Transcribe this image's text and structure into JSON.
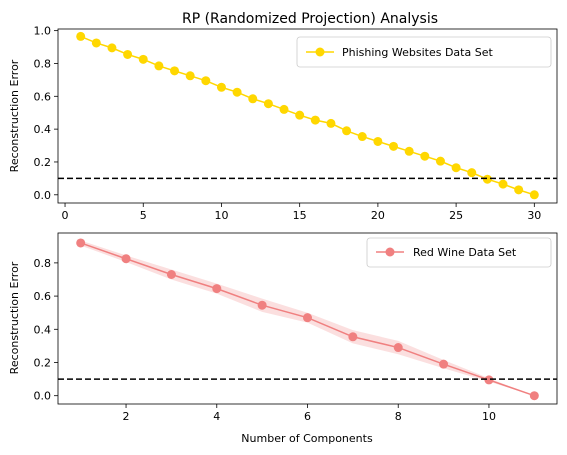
{
  "chart_data": [
    {
      "type": "line",
      "title": "RP (Randomized Projection) Analysis",
      "xlabel": "",
      "ylabel": "Reconstruction Error",
      "xlim": [
        -0.45,
        31.45
      ],
      "ylim": [
        -0.05,
        1.01
      ],
      "xticks": [
        0,
        5,
        10,
        15,
        20,
        25,
        30
      ],
      "yticks": [
        0.0,
        0.2,
        0.4,
        0.6,
        0.8,
        1.0
      ],
      "threshold": 0.1,
      "legend_position": "top-right",
      "series": [
        {
          "name": "Phishing Websites Data Set",
          "color": "#FFD700",
          "x": [
            1,
            2,
            3,
            4,
            5,
            6,
            7,
            8,
            9,
            10,
            11,
            12,
            13,
            14,
            15,
            16,
            17,
            18,
            19,
            20,
            21,
            22,
            23,
            24,
            25,
            26,
            27,
            28,
            29,
            30
          ],
          "y": [
            0.965,
            0.925,
            0.895,
            0.855,
            0.825,
            0.785,
            0.755,
            0.725,
            0.695,
            0.655,
            0.625,
            0.585,
            0.555,
            0.52,
            0.485,
            0.455,
            0.435,
            0.39,
            0.355,
            0.325,
            0.295,
            0.265,
            0.235,
            0.205,
            0.165,
            0.135,
            0.095,
            0.065,
            0.03,
            0.0
          ]
        }
      ]
    },
    {
      "type": "line",
      "title": "",
      "xlabel": "Number of Components",
      "ylabel": "Reconstruction Error",
      "xlim": [
        0.5,
        11.5
      ],
      "ylim": [
        -0.05,
        0.98
      ],
      "xticks": [
        2,
        4,
        6,
        8,
        10
      ],
      "yticks": [
        0.0,
        0.2,
        0.4,
        0.6,
        0.8
      ],
      "threshold": 0.1,
      "legend_position": "top-right",
      "series": [
        {
          "name": "Red Wine Data Set",
          "color": "#F08080",
          "x": [
            1,
            2,
            3,
            4,
            5,
            6,
            7,
            8,
            9,
            10,
            11
          ],
          "y": [
            0.92,
            0.825,
            0.73,
            0.645,
            0.545,
            0.47,
            0.355,
            0.29,
            0.19,
            0.095,
            0.0
          ],
          "band_lower": [
            0.905,
            0.805,
            0.7,
            0.615,
            0.505,
            0.44,
            0.315,
            0.25,
            0.165,
            0.085,
            0.0
          ],
          "band_upper": [
            0.935,
            0.845,
            0.76,
            0.675,
            0.585,
            0.5,
            0.395,
            0.33,
            0.215,
            0.105,
            0.0
          ]
        }
      ]
    }
  ]
}
